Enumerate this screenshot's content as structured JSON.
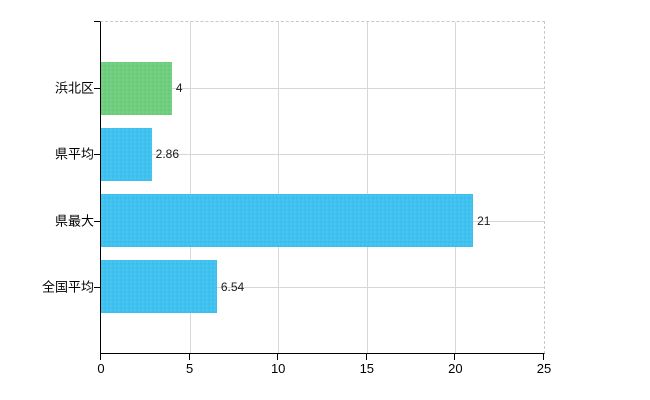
{
  "chart_data": {
    "type": "bar",
    "orientation": "horizontal",
    "title": "",
    "xlabel": "",
    "ylabel": "",
    "categories": [
      "浜北区",
      "県平均",
      "県最大",
      "全国平均"
    ],
    "values": [
      4,
      2.86,
      21,
      6.54
    ],
    "value_labels": [
      "4",
      "2.86",
      "21",
      "6.54"
    ],
    "bar_colors": [
      "#6fce7e",
      "#3fc1f0",
      "#3fc1f0",
      "#3fc1f0"
    ],
    "xlim": [
      0,
      25
    ],
    "x_ticks": [
      0,
      5,
      10,
      15,
      20,
      25
    ],
    "x_tick_labels": [
      "0",
      "5",
      "10",
      "15",
      "20",
      "25"
    ],
    "grid": true,
    "legend": null
  },
  "colors": {
    "background": "#ffffff",
    "grid_line": "#d7d7d7",
    "frame_dashed": "#c8c8c8",
    "axis_line": "#000000",
    "text": "#000000",
    "value_text": "#1a1a1a"
  }
}
